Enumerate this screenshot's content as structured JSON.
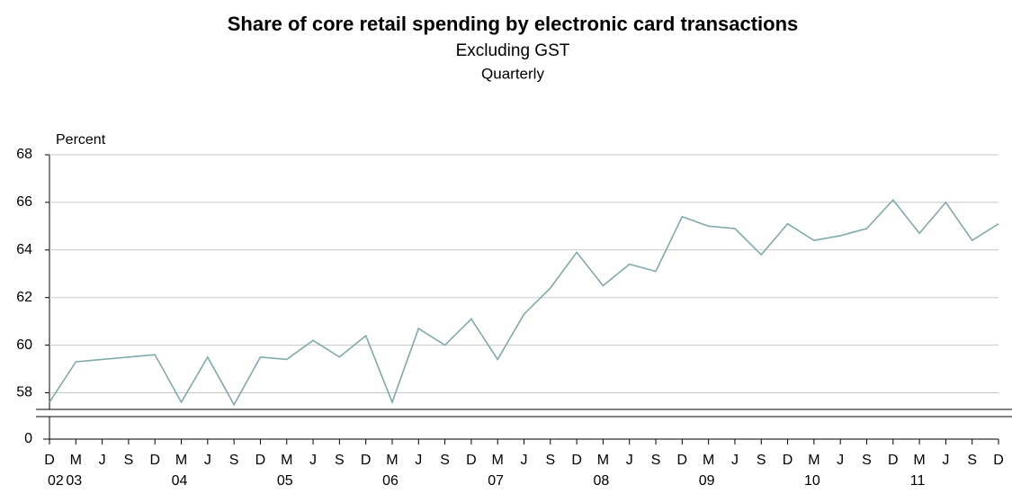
{
  "chart_data": {
    "type": "line",
    "title": "Share of core retail spending by electronic card transactions",
    "subtitle": "Excluding GST",
    "frequency": "Quarterly",
    "y_label": "Percent",
    "categories": [
      "D",
      "M",
      "J",
      "S",
      "D",
      "M",
      "J",
      "S",
      "D",
      "M",
      "J",
      "S",
      "D",
      "M",
      "J",
      "S",
      "D",
      "M",
      "J",
      "S",
      "D",
      "M",
      "J",
      "S",
      "D",
      "M",
      "J",
      "S",
      "D",
      "M",
      "J",
      "S",
      "D",
      "M",
      "J",
      "S",
      "D"
    ],
    "year_labels": [
      "02",
      "03",
      null,
      null,
      null,
      "04",
      null,
      null,
      null,
      "05",
      null,
      null,
      null,
      "06",
      null,
      null,
      null,
      "07",
      null,
      null,
      null,
      "08",
      null,
      null,
      null,
      "09",
      null,
      null,
      null,
      "10",
      null,
      null,
      null,
      "11",
      null,
      null,
      null
    ],
    "series": [
      {
        "name": "Share",
        "color": "#7fa9aa",
        "values": [
          57.6,
          59.3,
          59.4,
          59.5,
          59.6,
          57.6,
          59.5,
          57.5,
          59.5,
          59.4,
          60.2,
          59.5,
          60.4,
          57.6,
          60.7,
          60.0,
          61.1,
          59.4,
          61.3,
          62.4,
          63.9,
          62.5,
          63.4,
          63.1,
          65.4,
          65.0,
          64.9,
          63.8,
          65.1,
          64.4,
          64.6,
          64.9,
          66.1,
          64.7,
          66.0,
          64.4,
          65.1
        ]
      }
    ],
    "ylim": [
      57.3,
      68
    ],
    "yticks": [
      58,
      60,
      62,
      64,
      66,
      68
    ],
    "broken_axis_tick": 0,
    "grid": true
  }
}
